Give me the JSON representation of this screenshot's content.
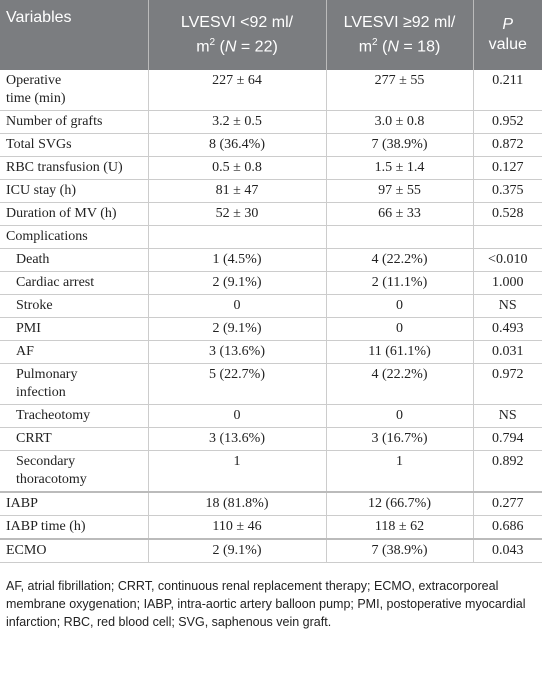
{
  "table": {
    "header": [
      [
        "Variables"
      ],
      [
        "LVESVI <92 ml/",
        "m",
        "2",
        " (",
        "N",
        " = 22)"
      ],
      [
        "LVESVI ≥92 ml/",
        "m",
        "2",
        " (",
        "N",
        " = 18)"
      ],
      [
        "P",
        "value"
      ]
    ],
    "rows": [
      [
        "Operative time (min)",
        "227 ± 64",
        "277 ± 55",
        "0.211"
      ],
      [
        "Number of grafts",
        "3.2 ± 0.5",
        "3.0 ± 0.8",
        "0.952"
      ],
      [
        "Total SVGs",
        "8 (36.4%)",
        "7 (38.9%)",
        "0.872"
      ],
      [
        "RBC transfusion (U)",
        "0.5 ± 0.8",
        "1.5 ± 1.4",
        "0.127"
      ],
      [
        "ICU stay (h)",
        "81 ± 47",
        "97 ± 55",
        "0.375"
      ],
      [
        "Duration of MV (h)",
        "52 ± 30",
        "66 ± 33",
        "0.528"
      ],
      [
        "Complications"
      ],
      [
        "Death",
        "1 (4.5%)",
        "4 (22.2%)",
        "<0.010"
      ],
      [
        "Cardiac arrest",
        "2 (9.1%)",
        "2 (11.1%)",
        "1.000"
      ],
      [
        "Stroke",
        "0",
        "0",
        "NS"
      ],
      [
        "PMI",
        "2 (9.1%)",
        "0",
        "0.493"
      ],
      [
        "AF",
        "3 (13.6%)",
        "11 (61.1%)",
        "0.031"
      ],
      [
        "Pulmonary infection",
        "5 (22.7%)",
        "4 (22.2%)",
        "0.972"
      ],
      [
        "Tracheotomy",
        "0",
        "0",
        "NS"
      ],
      [
        "CRRT",
        "3 (13.6%)",
        "3 (16.7%)",
        "0.794"
      ],
      [
        "Secondary thoracotomy",
        "1",
        "1",
        "0.892"
      ],
      [
        "IABP",
        "18 (81.8%)",
        "12 (66.7%)",
        "0.277"
      ],
      [
        "IABP time (h)",
        "110 ± 46",
        "118 ± 62",
        "0.686"
      ],
      [
        "ECMO",
        "2 (9.1%)",
        "7 (38.9%)",
        "0.043"
      ]
    ],
    "footnote": "AF, atrial fibrillation; CRRT, continuous renal replacement therapy; ECMO, extracorporeal membrane oxygenation; IABP, intra-aortic artery balloon pump; PMI, postoperative myocardial infarction; RBC, red blood cell; SVG, saphenous vein graft."
  }
}
